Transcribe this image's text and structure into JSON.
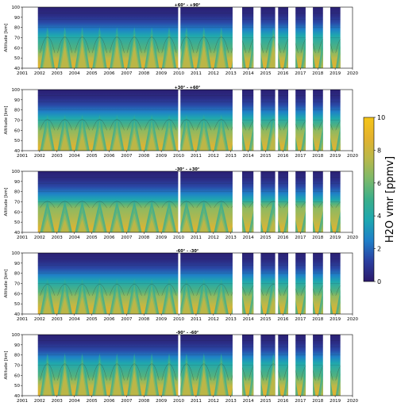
{
  "chart_data": [
    {
      "type": "heatmap",
      "title": "+60° - +90°",
      "ylabel": "Altitude [km]",
      "xlim": [
        2001,
        2020
      ],
      "ylim": [
        40,
        100
      ],
      "yticks": [
        40,
        50,
        60,
        70,
        80,
        90,
        100
      ],
      "x_tick_labels": [
        "2001",
        "2002",
        "2003",
        "2004",
        "2005",
        "2006",
        "2007",
        "2008",
        "2009",
        "2010",
        "2011",
        "2012",
        "2013",
        "2014",
        "2015",
        "2016",
        "2017",
        "2018",
        "2019",
        "2020"
      ],
      "seasonal_amplitude": 0.9,
      "base_top_altitude": 55,
      "data_gaps": []
    },
    {
      "type": "heatmap",
      "title": "+30° - +60°",
      "ylabel": "Altitude [km]",
      "xlim": [
        2001,
        2020
      ],
      "ylim": [
        40,
        100
      ],
      "yticks": [
        40,
        50,
        60,
        70,
        80,
        90,
        100
      ],
      "x_tick_labels": [
        "2001",
        "2002",
        "2003",
        "2004",
        "2005",
        "2006",
        "2007",
        "2008",
        "2009",
        "2010",
        "2011",
        "2012",
        "2013",
        "2014",
        "2015",
        "2016",
        "2017",
        "2018",
        "2019",
        "2020"
      ],
      "seasonal_amplitude": 0.55,
      "base_top_altitude": 60,
      "data_gaps": [
        [
          2015.55,
          2015.7,
          88,
          93
        ]
      ]
    },
    {
      "type": "heatmap",
      "title": "-30° - +30°",
      "ylabel": "Altitude [km]",
      "xlim": [
        2001,
        2020
      ],
      "ylim": [
        40,
        100
      ],
      "yticks": [
        40,
        50,
        60,
        70,
        80,
        90,
        100
      ],
      "x_tick_labels": [
        "2001",
        "2002",
        "2003",
        "2004",
        "2005",
        "2006",
        "2007",
        "2008",
        "2009",
        "2010",
        "2011",
        "2012",
        "2013",
        "2014",
        "2015",
        "2016",
        "2017",
        "2018",
        "2019",
        "2020"
      ],
      "seasonal_amplitude": 0.25,
      "base_top_altitude": 64,
      "data_gaps": [
        [
          2015.55,
          2015.7,
          80,
          89
        ]
      ]
    },
    {
      "type": "heatmap",
      "title": "-60° - -30°",
      "ylabel": "Altitude [km]",
      "xlim": [
        2001,
        2020
      ],
      "ylim": [
        40,
        100
      ],
      "yticks": [
        40,
        50,
        60,
        70,
        80,
        90,
        100
      ],
      "x_tick_labels": [
        "2001",
        "2002",
        "2003",
        "2004",
        "2005",
        "2006",
        "2007",
        "2008",
        "2009",
        "2010",
        "2011",
        "2012",
        "2013",
        "2014",
        "2015",
        "2016",
        "2017",
        "2018",
        "2019",
        "2020"
      ],
      "seasonal_amplitude": 0.6,
      "base_top_altitude": 58,
      "data_gaps": []
    },
    {
      "type": "heatmap",
      "title": "-90° - -60°",
      "ylabel": "Altitude [km]",
      "xlim": [
        2001,
        2020
      ],
      "ylim": [
        40,
        100
      ],
      "yticks": [
        40,
        50,
        60,
        70,
        80,
        90,
        100
      ],
      "x_tick_labels": [
        "2001",
        "2002",
        "2003",
        "2004",
        "2005",
        "2006",
        "2007",
        "2008",
        "2009",
        "2010",
        "2011",
        "2012",
        "2013",
        "2014",
        "2015",
        "2016",
        "2017",
        "2018",
        "2019",
        "2020"
      ],
      "seasonal_amplitude": 0.95,
      "base_top_altitude": 55,
      "data_gaps": []
    }
  ],
  "coverage_segments": [
    [
      2001.9,
      2009.97
    ],
    [
      2010.1,
      2013.1
    ],
    [
      2013.65,
      2014.3
    ],
    [
      2014.72,
      2015.55
    ],
    [
      2015.72,
      2016.3
    ],
    [
      2016.72,
      2017.3
    ],
    [
      2017.72,
      2018.3
    ],
    [
      2018.72,
      2019.3
    ]
  ],
  "panel_specific_gap_2005": [
    2005.0,
    2005.08
  ],
  "colorbar": {
    "label": "H2O vmr [ppmv]",
    "min": 0,
    "max": 10,
    "ticks": [
      0,
      2,
      4,
      6,
      8,
      10
    ],
    "colors": [
      "#2b1a6b",
      "#2b3fa0",
      "#1f7fc8",
      "#1ea7b0",
      "#3aae8a",
      "#7cb96a",
      "#b9b84a",
      "#e3b22e",
      "#f5c518"
    ]
  }
}
